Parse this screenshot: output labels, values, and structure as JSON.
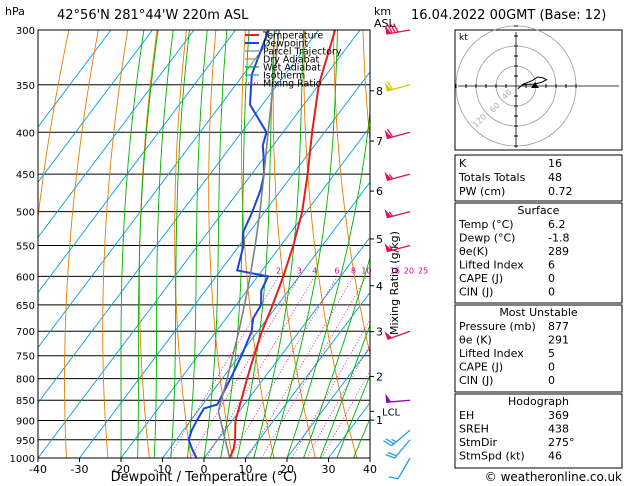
{
  "header": {
    "location": "42°56'N  281°44'W  220m  ASL",
    "date": "16.04.2022  00GMT  (Base: 12)",
    "hpa": "hPa",
    "km": "km",
    "asl": "ASL"
  },
  "chart_data": {
    "type": "line",
    "subtype": "skew-T log-p",
    "xlabel": "Dewpoint / Temperature (°C)",
    "ylabel_right": "Mixing Ratio (g/kg)",
    "x_ticks": [
      -40,
      -30,
      -20,
      -10,
      0,
      10,
      20,
      30,
      40
    ],
    "xlim": [
      -40,
      40
    ],
    "y_ticks_hpa": [
      300,
      350,
      400,
      450,
      500,
      550,
      600,
      650,
      700,
      750,
      800,
      850,
      900,
      950,
      1000
    ],
    "ylim_hpa": [
      1000,
      300
    ],
    "km_ticks": [
      {
        "label": "8",
        "p": 356
      },
      {
        "label": "7",
        "p": 410
      },
      {
        "label": "6",
        "p": 472
      },
      {
        "label": "5",
        "p": 540
      },
      {
        "label": "4",
        "p": 616
      },
      {
        "label": "3",
        "p": 701
      },
      {
        "label": "2",
        "p": 795
      },
      {
        "label": "1",
        "p": 899
      }
    ],
    "lcl": {
      "label": "LCL",
      "p": 877
    },
    "mixing_ratio_labels": [
      "2",
      "3",
      "4",
      "6",
      "8",
      "10",
      "16",
      "20",
      "25"
    ],
    "mixing_ratio_values": [
      2,
      3,
      4,
      6,
      8,
      10,
      16,
      20,
      25
    ],
    "legend": [
      "Temperature",
      "Dewpoint",
      "Parcel Trajectory",
      "Dry Adiabat",
      "Wet Adiabat",
      "Isotherm",
      "Mixing Ratio"
    ],
    "colors": {
      "Temperature": "#e02020",
      "Dewpoint": "#2040e0",
      "Parcel Trajectory": "#808080",
      "Dry Adiabat": "#e08000",
      "Wet Adiabat": "#00b000",
      "Isotherm": "#00a0e0",
      "Mixing Ratio": "#e000a0"
    },
    "series": [
      {
        "name": "Temperature",
        "points": [
          [
            1000,
            6.2
          ],
          [
            975,
            5.5
          ],
          [
            950,
            4.2
          ],
          [
            925,
            2.5
          ],
          [
            900,
            0.8
          ],
          [
            850,
            -1.5
          ],
          [
            800,
            -4.0
          ],
          [
            750,
            -6.5
          ],
          [
            700,
            -9.0
          ],
          [
            650,
            -11.2
          ],
          [
            600,
            -13.8
          ],
          [
            550,
            -17.0
          ],
          [
            500,
            -21.0
          ],
          [
            450,
            -26.5
          ],
          [
            400,
            -33.0
          ],
          [
            350,
            -40.0
          ],
          [
            300,
            -46.0
          ]
        ]
      },
      {
        "name": "Dewpoint",
        "points": [
          [
            1000,
            -1.8
          ],
          [
            975,
            -4.5
          ],
          [
            950,
            -7.0
          ],
          [
            925,
            -8.0
          ],
          [
            900,
            -8.5
          ],
          [
            870,
            -9.0
          ],
          [
            860,
            -6.5
          ],
          [
            800,
            -8.0
          ],
          [
            750,
            -9.5
          ],
          [
            700,
            -11.5
          ],
          [
            675,
            -13.5
          ],
          [
            650,
            -14.0
          ],
          [
            625,
            -16.5
          ],
          [
            600,
            -17.5
          ],
          [
            590,
            -26.0
          ],
          [
            550,
            -29.0
          ],
          [
            530,
            -31.5
          ],
          [
            500,
            -33.0
          ],
          [
            470,
            -35.0
          ],
          [
            450,
            -37.0
          ],
          [
            430,
            -40.0
          ],
          [
            415,
            -42.5
          ],
          [
            400,
            -44.0
          ],
          [
            370,
            -53.0
          ],
          [
            340,
            -58.0
          ],
          [
            300,
            -62.0
          ]
        ]
      },
      {
        "name": "Parcel Trajectory",
        "points": [
          [
            1000,
            6.2
          ],
          [
            950,
            1.8
          ],
          [
            900,
            -2.8
          ],
          [
            877,
            -5.0
          ],
          [
            850,
            -6.3
          ],
          [
            800,
            -8.8
          ],
          [
            750,
            -11.6
          ],
          [
            700,
            -14.6
          ],
          [
            650,
            -18.0
          ],
          [
            600,
            -21.8
          ],
          [
            550,
            -26.2
          ],
          [
            500,
            -31.2
          ],
          [
            450,
            -37.0
          ],
          [
            400,
            -43.6
          ],
          [
            350,
            -51.0
          ],
          [
            300,
            -59.5
          ]
        ]
      }
    ],
    "wind_barbs": [
      {
        "p": 300,
        "dir": 260,
        "spd": 80
      },
      {
        "p": 350,
        "dir": 255,
        "spd": 60
      },
      {
        "p": 400,
        "dir": 255,
        "spd": 60
      },
      {
        "p": 450,
        "dir": 255,
        "spd": 55
      },
      {
        "p": 500,
        "dir": 255,
        "spd": 55
      },
      {
        "p": 550,
        "dir": 255,
        "spd": 55
      },
      {
        "p": 700,
        "dir": 250,
        "spd": 50
      },
      {
        "p": 850,
        "dir": 265,
        "spd": 50
      },
      {
        "p": 925,
        "dir": 230,
        "spd": 25
      },
      {
        "p": 950,
        "dir": 220,
        "spd": 20
      },
      {
        "p": 1000,
        "dir": 210,
        "spd": 10
      }
    ],
    "hodograph": {
      "unit_label": "kt",
      "ring_labels": [
        "40",
        "60",
        "120"
      ],
      "points": [
        [
          2,
          -3
        ],
        [
          8,
          2
        ],
        [
          18,
          6
        ],
        [
          24,
          10
        ],
        [
          30,
          9
        ],
        [
          34,
          7
        ],
        [
          28,
          4
        ],
        [
          20,
          2
        ],
        [
          12,
          2
        ],
        [
          6,
          1
        ]
      ]
    }
  },
  "indices": [
    {
      "label": "K",
      "value": "16"
    },
    {
      "label": "Totals Totals",
      "value": "48"
    },
    {
      "label": "PW (cm)",
      "value": "0.72"
    }
  ],
  "surface": {
    "title": "Surface",
    "rows": [
      {
        "label": "Temp (°C)",
        "value": "6.2"
      },
      {
        "label": "Dewp (°C)",
        "value": "-1.8"
      },
      {
        "label": "θe(K)",
        "value": "289"
      },
      {
        "label": "Lifted Index",
        "value": "6"
      },
      {
        "label": "CAPE (J)",
        "value": "0"
      },
      {
        "label": "CIN (J)",
        "value": "0"
      }
    ]
  },
  "most_unstable": {
    "title": "Most Unstable",
    "rows": [
      {
        "label": "Pressure (mb)",
        "value": "877"
      },
      {
        "label": "θe (K)",
        "value": "291"
      },
      {
        "label": "Lifted Index",
        "value": "5"
      },
      {
        "label": "CAPE (J)",
        "value": "0"
      },
      {
        "label": "CIN (J)",
        "value": "0"
      }
    ]
  },
  "hodograph_table": {
    "title": "Hodograph",
    "rows": [
      {
        "label": "EH",
        "value": "369"
      },
      {
        "label": "SREH",
        "value": "438"
      },
      {
        "label": "StmDir",
        "value": "275°"
      },
      {
        "label": "StmSpd (kt)",
        "value": "46"
      }
    ]
  },
  "footer": {
    "copyright": "© weatheronline.co.uk"
  }
}
